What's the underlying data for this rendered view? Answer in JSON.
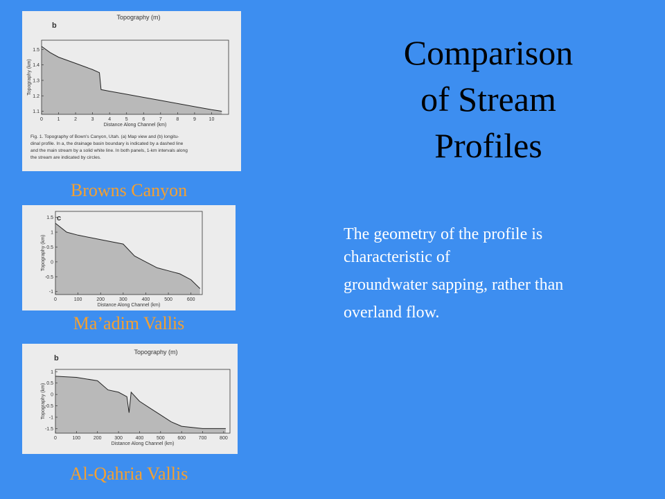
{
  "title": [
    "Comparison",
    "of Stream",
    "Profiles"
  ],
  "body": [
    "The geometry of the profile is",
    "characteristic of",
    "groundwater sapping, rather than",
    "overland flow."
  ],
  "figures": [
    {
      "label": "Browns Canyon",
      "panel": "b",
      "header": "Topography (m)",
      "y_axis_label": "Topography (km)",
      "x_axis_label": "Distance Along Channel (km)",
      "caption": [
        "Fig. 1.  Topography of Bown's Canyon, Utah. (a) Map view and (b) longitu-",
        "dinal profile. In a, the drainage basin boundary is indicated by a dashed line",
        "and the main stream by a solid white line. In both panels, 1-km intervals along",
        "the stream are indicated by circles."
      ],
      "xlim": [
        0,
        11
      ],
      "ylim": [
        1.08,
        1.56
      ],
      "xticks": [
        0,
        1,
        2,
        3,
        4,
        5,
        6,
        7,
        8,
        9,
        10
      ],
      "yticks": [
        1.1,
        1.2,
        1.3,
        1.4,
        1.5
      ],
      "profile": {
        "x": [
          0,
          0.5,
          1,
          2,
          3,
          3.4,
          3.5,
          4,
          5,
          6,
          7,
          8,
          9,
          10,
          10.6
        ],
        "y": [
          1.52,
          1.48,
          1.45,
          1.41,
          1.37,
          1.35,
          1.24,
          1.23,
          1.21,
          1.19,
          1.17,
          1.15,
          1.13,
          1.11,
          1.1
        ]
      }
    },
    {
      "label": "Ma’adim Vallis",
      "panel": "c",
      "y_axis_label": "Topography (km)",
      "x_axis_label": "Distance Along Channel (km)",
      "xlim": [
        0,
        650
      ],
      "ylim": [
        -1.1,
        1.7
      ],
      "xticks": [
        0,
        100,
        200,
        300,
        400,
        500,
        600
      ],
      "yticks": [
        1.5,
        1,
        0.5,
        0,
        -0.5,
        -1
      ],
      "profile": {
        "x": [
          0,
          50,
          100,
          200,
          300,
          350,
          400,
          450,
          500,
          550,
          600,
          640
        ],
        "y": [
          1.3,
          1.0,
          0.9,
          0.75,
          0.6,
          0.2,
          0,
          -0.2,
          -0.3,
          -0.4,
          -0.6,
          -0.9
        ]
      }
    },
    {
      "label": "Al-Qahria Vallis",
      "panel": "b",
      "header": "Topography (m)",
      "y_axis_label": "Topography (km)",
      "x_axis_label": "Distance Along Channel (km)",
      "xlim": [
        0,
        830
      ],
      "ylim": [
        -1.7,
        1.1
      ],
      "xticks": [
        0,
        100,
        200,
        300,
        400,
        500,
        600,
        700,
        800
      ],
      "yticks": [
        1,
        0.5,
        0,
        -0.5,
        -1,
        -1.5
      ],
      "profile": {
        "x": [
          0,
          100,
          200,
          250,
          300,
          340,
          350,
          360,
          400,
          450,
          500,
          550,
          600,
          700,
          810
        ],
        "y": [
          0.8,
          0.75,
          0.6,
          0.2,
          0.1,
          -0.1,
          -0.8,
          0.1,
          -0.3,
          -0.6,
          -0.9,
          -1.2,
          -1.4,
          -1.5,
          -1.5
        ]
      }
    }
  ]
}
